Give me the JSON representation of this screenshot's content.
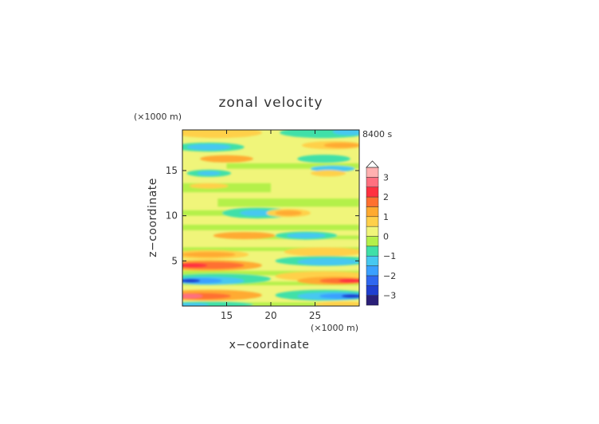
{
  "chart_data": {
    "type": "heatmap",
    "title": "zonal velocity",
    "xlabel": "x−coordinate",
    "ylabel": "z−coordinate",
    "x_unit": "(×1000 m)",
    "y_unit": "(×1000 m)",
    "time_label": "8400 s",
    "xlim": [
      10,
      30
    ],
    "ylim": [
      0,
      19.5
    ],
    "x_ticks": [
      15,
      20,
      25
    ],
    "y_ticks": [
      5,
      10,
      15
    ],
    "colorbar": {
      "levels": [
        -3.5,
        -3,
        -2.5,
        -2,
        -1.5,
        -1,
        -0.5,
        0,
        0.5,
        1,
        1.5,
        2,
        2.5,
        3,
        3.5
      ],
      "tick_values": [
        -3,
        -2,
        -1,
        0,
        1,
        2,
        3
      ],
      "tick_labels": [
        "−3",
        "−2",
        "−1",
        "0",
        "1",
        "2",
        "3"
      ],
      "colors": [
        "#2a1f78",
        "#1f3fd0",
        "#2e67f0",
        "#3aa0ff",
        "#46c8f0",
        "#3fe0a8",
        "#b4f04a",
        "#f0f57a",
        "#ffd04a",
        "#ffaa30",
        "#ff7030",
        "#ff3040",
        "#ff7080",
        "#ffb0b0"
      ],
      "extend": "max"
    }
  }
}
